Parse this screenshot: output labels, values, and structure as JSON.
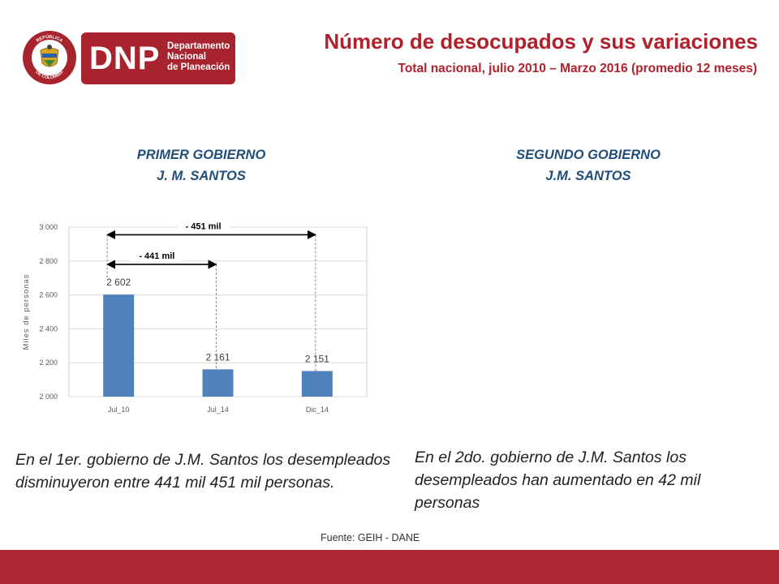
{
  "logo": {
    "seal_text_top": "REPÚBLICA",
    "seal_text_bottom": "DE COLOMBIA",
    "letters": "DNP",
    "line1": "Departamento",
    "line2": "Nacional",
    "line3": "de Planeación"
  },
  "header": {
    "title": "Número de desocupados y sus variaciones",
    "subtitle": "Total nacional, julio 2010 – Marzo 2016 (promedio 12 meses)"
  },
  "left": {
    "heading_line1": "PRIMER GOBIERNO",
    "heading_line2": "J. M. SANTOS",
    "note": "En el 1er. gobierno de J.M. Santos los desempleados disminuyeron entre 441 mil 451 mil personas."
  },
  "right": {
    "heading_line1": "SEGUNDO GOBIERNO",
    "heading_line2": "J.M. SANTOS",
    "note": "En el 2do. gobierno de J.M. Santos los desempleados han aumentado en 42 mil personas"
  },
  "chart_data": {
    "type": "bar",
    "categories": [
      "Jul_10",
      "Jul_14",
      "Dic_14"
    ],
    "values": [
      2602,
      2161,
      2151
    ],
    "data_labels": [
      "2 602",
      "2 161",
      "2 151"
    ],
    "ylabel": "Miles de personas",
    "ylim": [
      2000,
      3000
    ],
    "yticks": [
      2000,
      2200,
      2400,
      2600,
      2800,
      3000
    ],
    "ytick_labels": [
      "2 000",
      "2 200",
      "2 400",
      "2 600",
      "2 800",
      "3 000"
    ],
    "grid": true,
    "bar_color": "#4f81bd",
    "annotations": [
      {
        "text": "- 441 mil",
        "from": "Jul_10",
        "to": "Jul_14"
      },
      {
        "text": "- 451 mil",
        "from": "Jul_10",
        "to": "Dic_14"
      }
    ]
  },
  "footer": {
    "source": "Fuente: GEIH - DANE"
  },
  "colors": {
    "brand_red": "#ab2732",
    "heading_blue": "#1f4e79"
  }
}
